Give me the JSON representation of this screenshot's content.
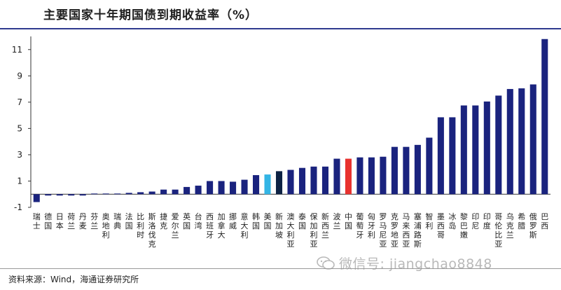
{
  "title": "主要国家十年期国债到期收益率（%）",
  "source": "资料来源：Wind，海通证券研究所",
  "watermark": "微信号: jiangchao8848",
  "colors": {
    "default": "#1a237e",
    "usa": "#33b5e5",
    "singapore": "#0d2244",
    "china": "#e8322f",
    "title_rule": "#2f3a8f"
  },
  "chart_data": {
    "type": "bar",
    "title": "主要国家十年期国债到期收益率（%）",
    "xlabel": "",
    "ylabel": "",
    "ylim": [
      -1,
      12
    ],
    "yticks": [
      -1,
      1,
      3,
      5,
      7,
      9,
      11
    ],
    "grid": false,
    "categories": [
      "瑞士",
      "德国",
      "日本",
      "荷兰",
      "丹麦",
      "芬兰",
      "奥地利",
      "瑞典",
      "法国",
      "比利时",
      "斯洛伐克",
      "捷克",
      "爱尔兰",
      "英国",
      "台湾",
      "西班牙",
      "加拿大",
      "挪威",
      "意大利",
      "韩国",
      "美国",
      "新加坡",
      "澳大利亚",
      "泰国",
      "保加利亚",
      "新西兰",
      "波兰",
      "中国",
      "葡萄牙",
      "匈牙利",
      "罗马尼亚",
      "克罗地亚",
      "马来西亚",
      "塞浦路斯",
      "智利",
      "墨西哥",
      "冰岛",
      "黎巴嫩",
      "印尼",
      "印度",
      "哥伦比亚",
      "乌克兰",
      "希腊",
      "俄罗斯",
      "巴西"
    ],
    "values": [
      -0.6,
      -0.1,
      -0.1,
      -0.1,
      -0.1,
      0.05,
      0.05,
      0.05,
      0.1,
      0.15,
      0.2,
      0.35,
      0.35,
      0.55,
      0.65,
      1.0,
      1.0,
      0.95,
      1.1,
      1.45,
      1.5,
      1.75,
      1.85,
      2.0,
      2.1,
      2.1,
      2.7,
      2.7,
      2.8,
      2.8,
      2.85,
      3.6,
      3.6,
      3.75,
      4.3,
      5.85,
      5.85,
      6.75,
      6.75,
      7.05,
      7.5,
      8.0,
      8.05,
      8.35,
      11.8
    ],
    "highlights": {
      "美国": "usa",
      "新加坡": "singapore",
      "中国": "china"
    }
  }
}
